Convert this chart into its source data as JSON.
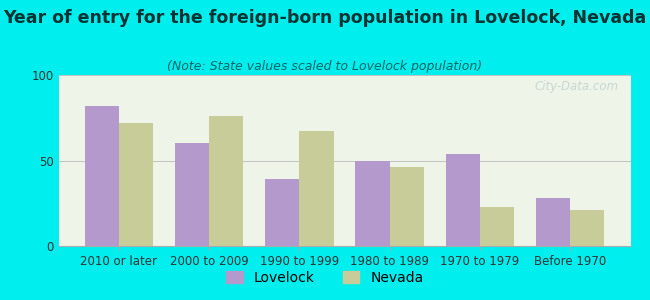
{
  "title": "Year of entry for the foreign-born population in Lovelock, Nevada",
  "subtitle": "(Note: State values scaled to Lovelock population)",
  "categories": [
    "2010 or later",
    "2000 to 2009",
    "1990 to 1999",
    "1980 to 1989",
    "1970 to 1979",
    "Before 1970"
  ],
  "lovelock_values": [
    82,
    60,
    39,
    50,
    54,
    28
  ],
  "nevada_values": [
    72,
    76,
    67,
    46,
    23,
    21
  ],
  "lovelock_color": "#b399cc",
  "nevada_color": "#c8cc99",
  "background_outer": "#00eeee",
  "background_inner": "#eef5e8",
  "ylim": [
    0,
    100
  ],
  "yticks": [
    0,
    50,
    100
  ],
  "bar_width": 0.38,
  "title_fontsize": 12.5,
  "subtitle_fontsize": 9,
  "tick_fontsize": 8.5,
  "legend_fontsize": 10,
  "title_color": "#003333",
  "subtitle_color": "#006666",
  "watermark": "City-Data.com"
}
